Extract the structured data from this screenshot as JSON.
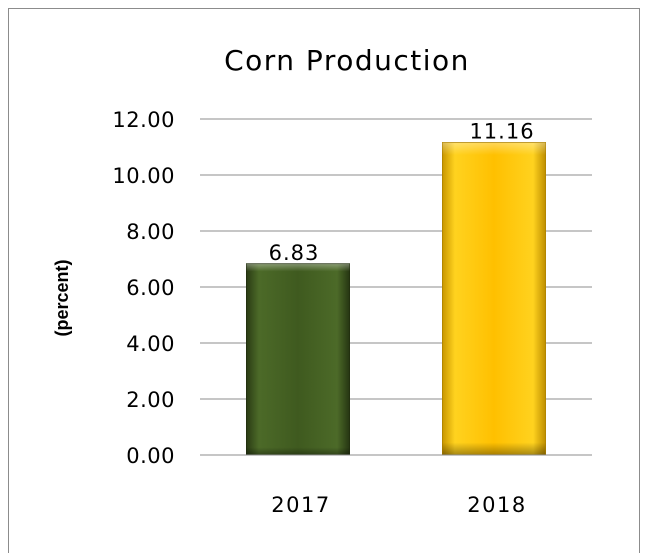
{
  "chart_data": {
    "type": "bar",
    "title": "Corn Production",
    "ylabel": "(percent)",
    "xlabel": "",
    "categories": [
      "2017",
      "2018"
    ],
    "values": [
      6.83,
      11.16
    ],
    "data_labels": [
      "6.83",
      "11.16"
    ],
    "ylim": [
      0,
      12
    ],
    "yticks": [
      "0.00",
      "2.00",
      "4.00",
      "6.00",
      "8.00",
      "10.00",
      "12.00"
    ],
    "bar_colors": [
      "#3f5a1f",
      "#ffc000"
    ],
    "grid": true,
    "legend": "none"
  }
}
